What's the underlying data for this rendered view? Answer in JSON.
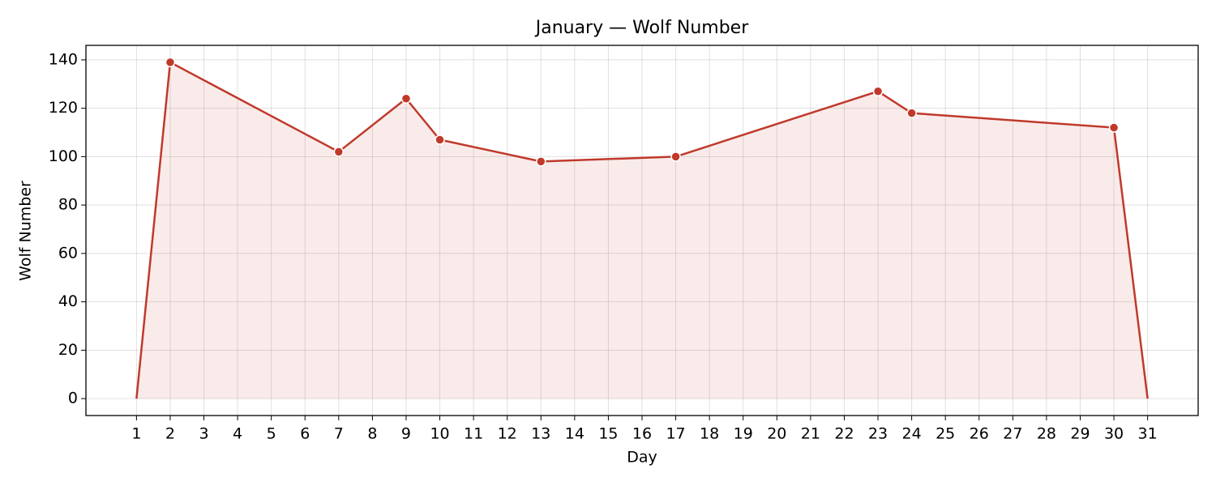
{
  "chart_data": {
    "type": "area_line",
    "title": "January — Wolf Number",
    "x_label": "Day",
    "y_label": "Wolf Number",
    "x": [
      1,
      2,
      7,
      9,
      10,
      13,
      17,
      23,
      24,
      30,
      31
    ],
    "series": [
      {
        "name": "Wolf Number",
        "color": "#c0392b",
        "values": [
          0,
          139,
          102,
          124,
          107,
          98,
          100,
          127,
          118,
          112,
          0
        ]
      }
    ],
    "xlim": [
      -0.5,
      32.5
    ],
    "xticks": [
      1,
      2,
      3,
      4,
      5,
      6,
      7,
      8,
      9,
      10,
      11,
      12,
      13,
      14,
      15,
      16,
      17,
      18,
      19,
      20,
      21,
      22,
      23,
      24,
      25,
      26,
      27,
      28,
      29,
      30,
      31
    ],
    "ylim": [
      -7,
      146
    ],
    "yticks": [
      0,
      20,
      40,
      60,
      80,
      100,
      120,
      140
    ],
    "grid": true
  }
}
